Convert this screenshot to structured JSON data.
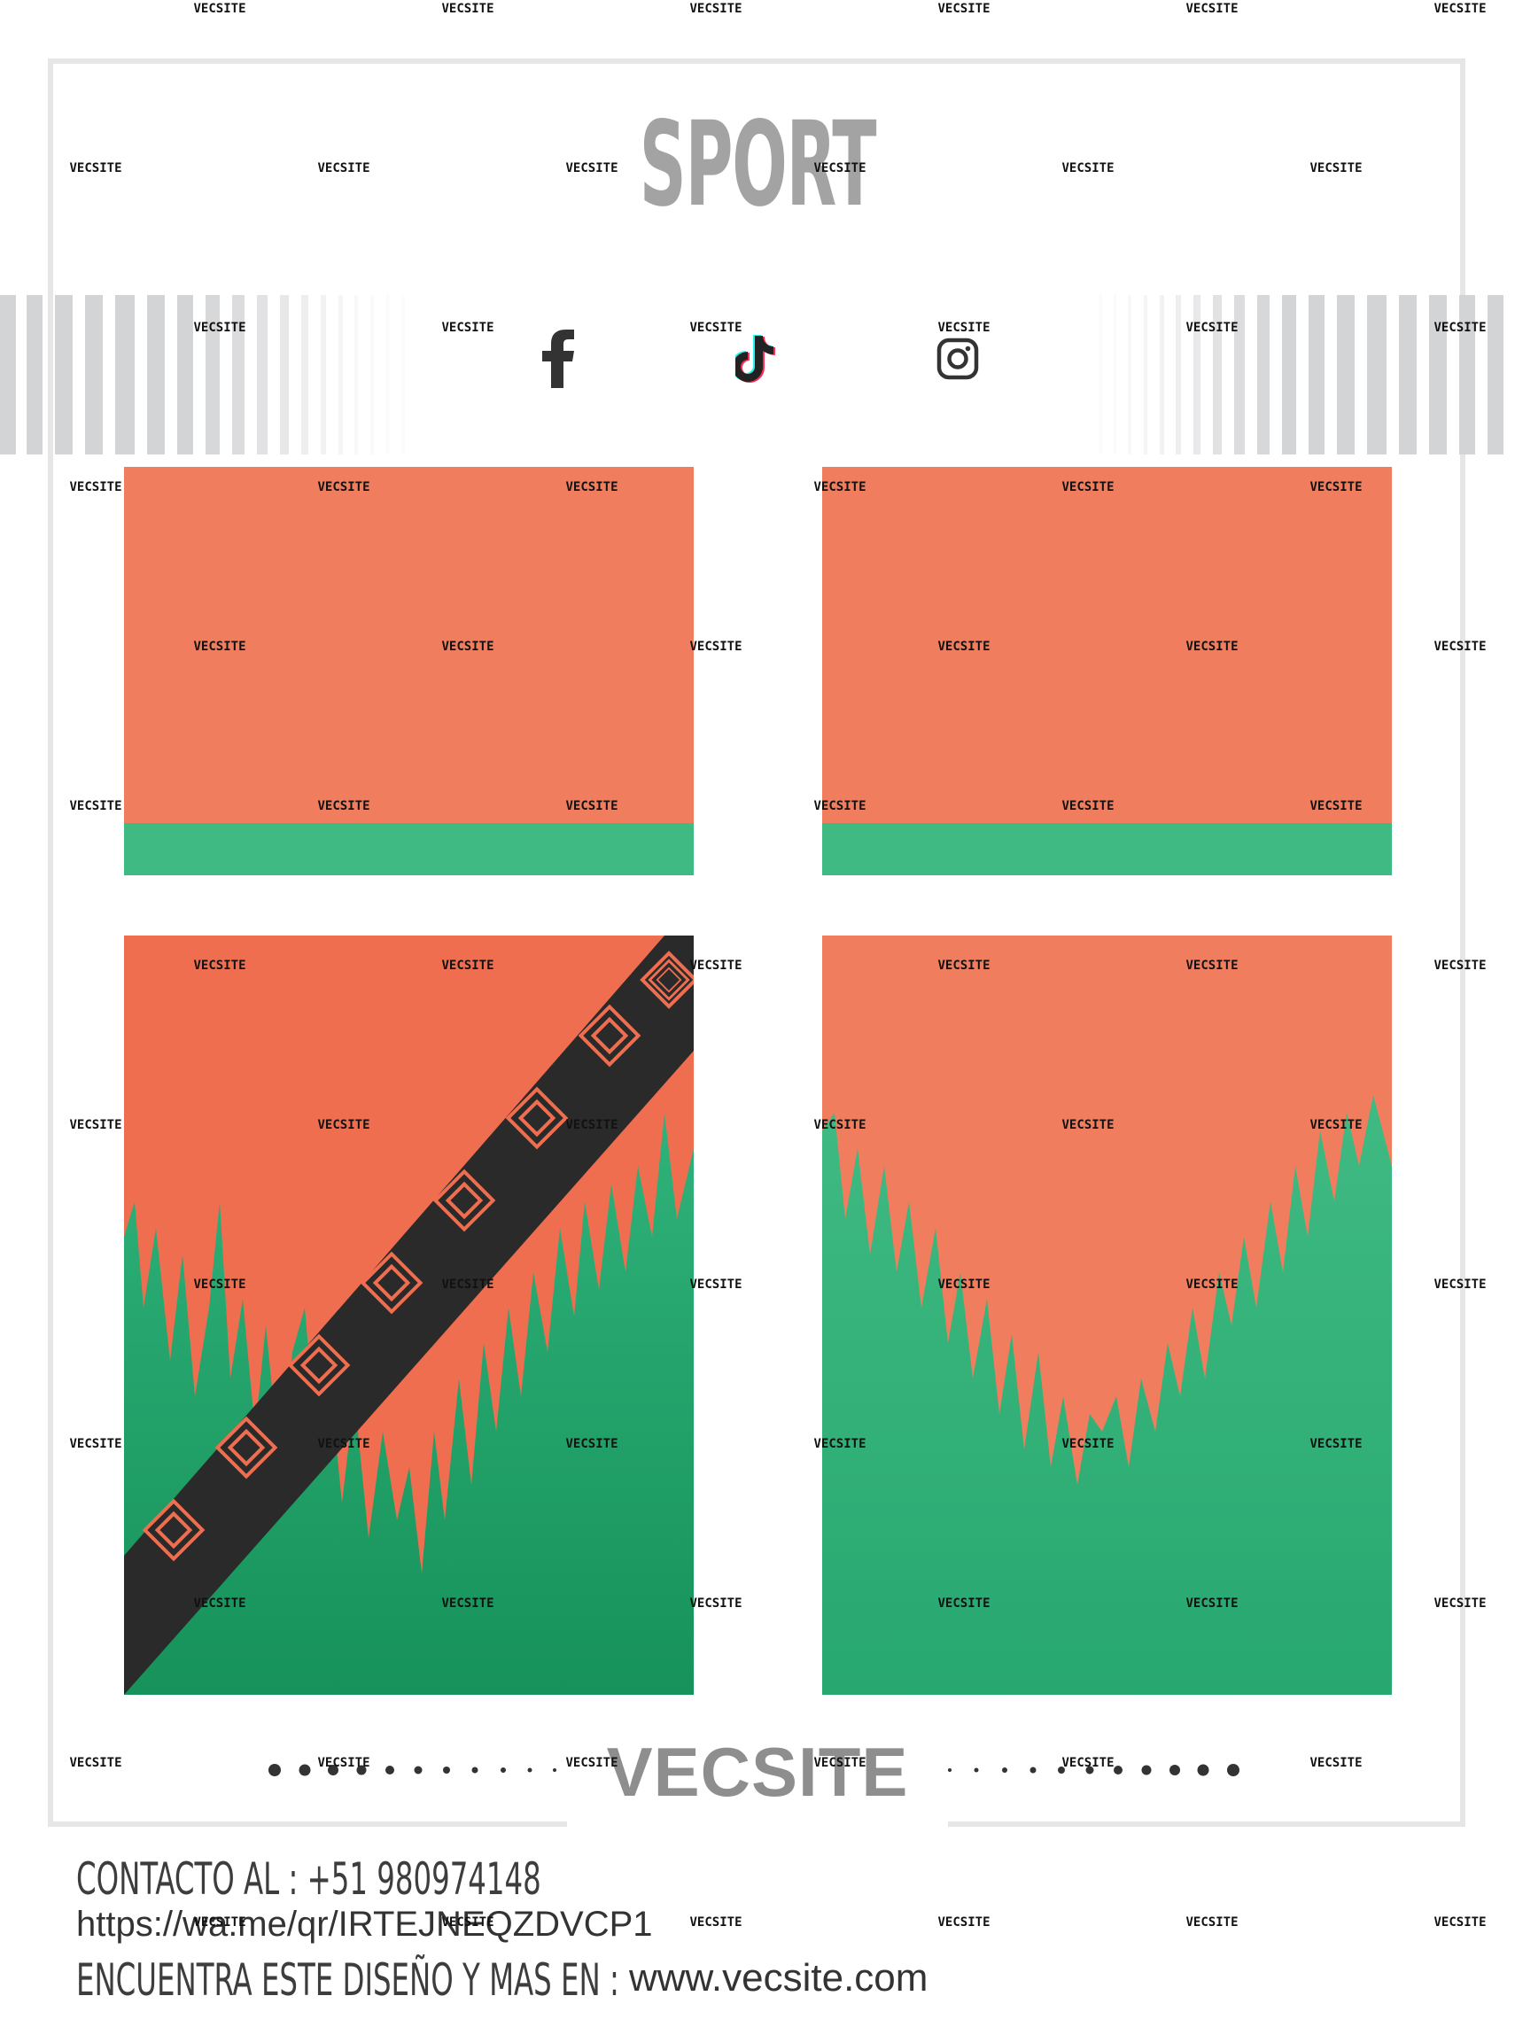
{
  "header": {
    "title": "SPORT"
  },
  "social": [
    {
      "name": "facebook-icon"
    },
    {
      "name": "tiktok-icon"
    },
    {
      "name": "instagram-icon"
    }
  ],
  "colors": {
    "orange": "#f07e5e",
    "green": "#3fba82",
    "dark_green": "#1b9a5e",
    "gray": "#a3a3a3",
    "stripe": "#d3d4d6"
  },
  "panels": [
    {
      "name": "top-left-panel"
    },
    {
      "name": "top-right-panel"
    },
    {
      "name": "bottom-left-panel"
    },
    {
      "name": "bottom-right-panel"
    }
  ],
  "brand": {
    "name": "VECSITE"
  },
  "watermark": {
    "text": "VECSITE"
  },
  "footer": {
    "contact": "CONTACTO AL : +51 980974148",
    "whatsapp_url": "https://wa.me/qr/IRTEJNEQZDVCP1",
    "find_label": "ENCUENTRA ESTE DISEÑO Y MAS EN :",
    "site": "www.vecsite.com"
  }
}
